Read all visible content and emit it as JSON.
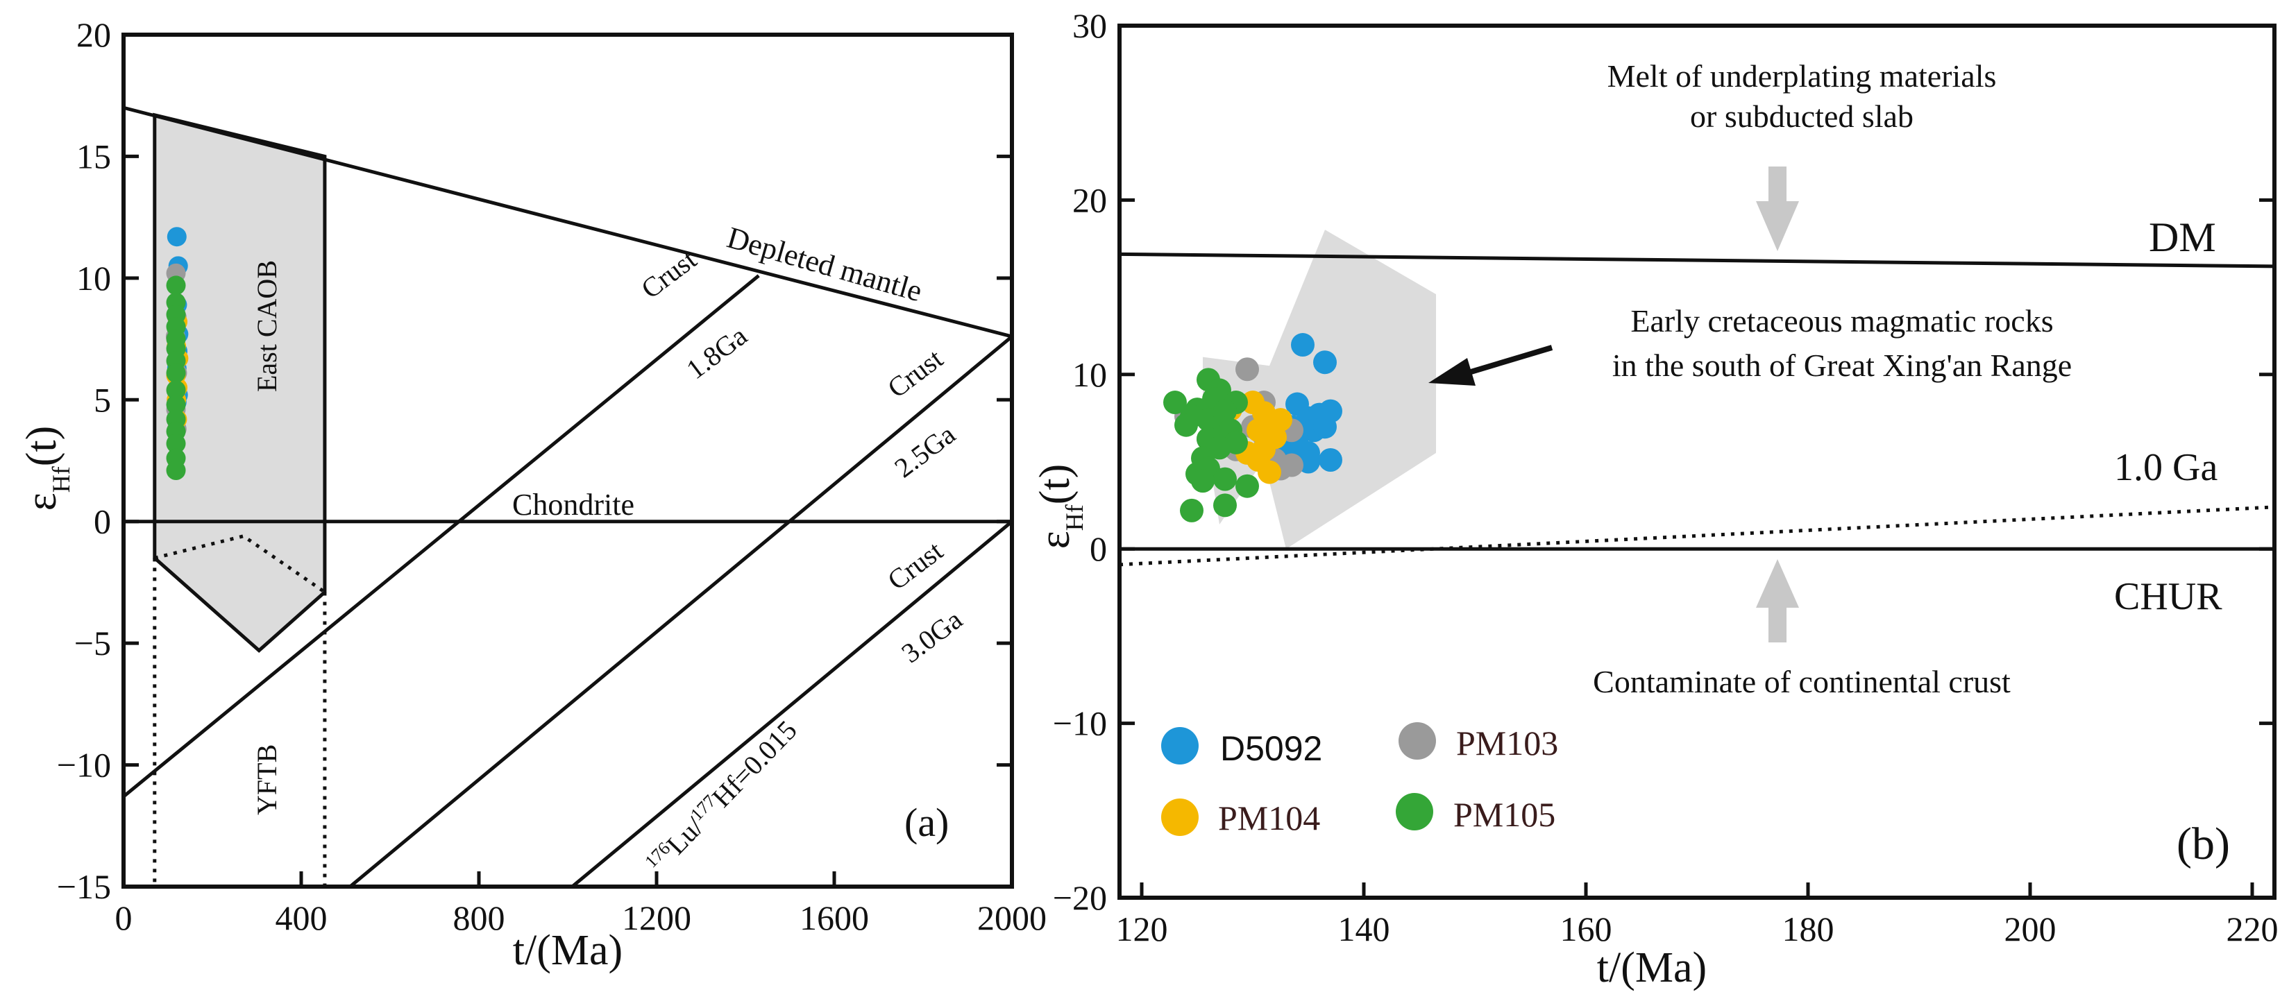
{
  "chart_data": [
    {
      "type": "scatter",
      "panel_label": "(a)",
      "xlabel": "t/(Ma)",
      "ylabel_main": "ε",
      "ylabel_sub": "Hf",
      "ylabel_suffix": "(t)",
      "xlim": [
        0,
        2000
      ],
      "ylim": [
        -15,
        20
      ],
      "x_ticks": [
        0,
        400,
        800,
        1200,
        1600,
        2000
      ],
      "y_ticks": [
        -15,
        -10,
        -5,
        0,
        5,
        10,
        15,
        20
      ],
      "x_tick_labels": [
        "0",
        "400",
        "800",
        "1200",
        "1600",
        "2000"
      ],
      "y_tick_labels": [
        "−15",
        "−10",
        "−5",
        "0",
        "5",
        "10",
        "15",
        "20"
      ],
      "grid": false,
      "lines": [
        {
          "label": "Depleted mantle",
          "points": [
            [
              0,
              17
            ],
            [
              2000,
              7.6
            ]
          ]
        },
        {
          "label": "Chondrite",
          "points": [
            [
              0,
              0
            ],
            [
              2000,
              0
            ]
          ]
        },
        {
          "label": "Crust 1.8Ga",
          "label_a": "Crust",
          "label_b": "1.8Ga",
          "points": [
            [
              0,
              -11.3
            ],
            [
              1430,
              10.1
            ]
          ]
        },
        {
          "label": "Crust 2.5Ga",
          "label_a": "Crust",
          "label_b": "2.5Ga",
          "points": [
            [
              510,
              -15
            ],
            [
              2000,
              7.6
            ]
          ]
        },
        {
          "label": "Crust 3.0Ga",
          "label_a": "Crust",
          "label_b": "3.0Ga",
          "points": [
            [
              1010,
              -15
            ],
            [
              2000,
              0
            ]
          ]
        }
      ],
      "lu_hf_label": {
        "pre1": "176",
        "mid1": "Lu/",
        "pre2": "177",
        "mid2": "Hf=0.015"
      },
      "regions": [
        {
          "label": "East CAOB",
          "fill": "#dcdcdc",
          "polygon": [
            [
              70,
              16.7
            ],
            [
              453,
              15
            ],
            [
              453,
              -2.9
            ],
            [
              305,
              -5.3
            ],
            [
              70,
              -1.5
            ]
          ]
        },
        {
          "label": "YFTB",
          "fill": "none"
        }
      ],
      "dotted_paths": [
        [
          [
            70,
            -1.5
          ],
          [
            70,
            -15
          ]
        ],
        [
          [
            453,
            -2.9
          ],
          [
            453,
            -15
          ]
        ],
        [
          [
            70,
            -1.5
          ],
          [
            270,
            -0.6
          ],
          [
            453,
            -2.9
          ]
        ]
      ],
      "series": [
        {
          "name": "D5092",
          "color": "#1e96d8",
          "points": [
            [
              120,
              11.7
            ],
            [
              123,
              10.5
            ],
            [
              121,
              8.9
            ],
            [
              124,
              7.7
            ],
            [
              122,
              7.0
            ],
            [
              120,
              6.3
            ],
            [
              123,
              5.2
            ],
            [
              120,
              4.9
            ]
          ]
        },
        {
          "name": "PM103",
          "color": "#9a9a9a",
          "points": [
            [
              118,
              10.2
            ],
            [
              120,
              8.4
            ],
            [
              117,
              7.6
            ],
            [
              121,
              6.1
            ],
            [
              118,
              4.6
            ],
            [
              120,
              3.8
            ]
          ]
        },
        {
          "name": "PM104",
          "color": "#f5b800",
          "points": [
            [
              122,
              8.2
            ],
            [
              119,
              7.2
            ],
            [
              124,
              6.7
            ],
            [
              118,
              6.0
            ],
            [
              122,
              5.5
            ],
            [
              119,
              5.0
            ],
            [
              121,
              4.2
            ]
          ]
        },
        {
          "name": "PM105",
          "color": "#34a637",
          "points": [
            [
              118,
              9.7
            ],
            [
              118,
              9.0
            ],
            [
              118,
              8.5
            ],
            [
              118,
              8.0
            ],
            [
              118,
              7.5
            ],
            [
              118,
              7.1
            ],
            [
              118,
              6.6
            ],
            [
              118,
              6.1
            ],
            [
              118,
              5.4
            ],
            [
              118,
              4.8
            ],
            [
              118,
              4.2
            ],
            [
              118,
              3.7
            ],
            [
              118,
              3.2
            ],
            [
              118,
              2.6
            ],
            [
              118,
              2.1
            ]
          ]
        }
      ]
    },
    {
      "type": "scatter",
      "panel_label": "(b)",
      "xlabel": "t/(Ma)",
      "ylabel_main": "ε",
      "ylabel_sub": "Hf",
      "ylabel_suffix": "(t)",
      "xlim": [
        118,
        222
      ],
      "ylim": [
        -20,
        30
      ],
      "x_ticks": [
        120,
        140,
        160,
        180,
        200,
        220
      ],
      "y_ticks": [
        -20,
        -10,
        0,
        10,
        20,
        30
      ],
      "x_tick_labels": [
        "120",
        "140",
        "160",
        "180",
        "200",
        "220"
      ],
      "y_tick_labels": [
        "−20",
        "−10",
        "0",
        "10",
        "20",
        "30"
      ],
      "grid": false,
      "lines": [
        {
          "label": "DM",
          "points": [
            [
              118,
              16.9
            ],
            [
              222,
              16.2
            ]
          ]
        },
        {
          "label": "CHUR",
          "points": [
            [
              118,
              0
            ],
            [
              222,
              0
            ]
          ]
        },
        {
          "label": "1.0 Ga",
          "style": "dotted",
          "points": [
            [
              118,
              -0.9
            ],
            [
              222,
              2.4
            ]
          ]
        }
      ],
      "regions": [
        {
          "label": "Early cretaceous magmatic rocks in the south of Great Xing'an Range",
          "fill": "#dcdcdc",
          "polygon": [
            [
              125.5,
              11
            ],
            [
              131.5,
              10.5
            ],
            [
              136.5,
              18.3
            ],
            [
              146.5,
              14.6
            ],
            [
              146.5,
              5.5
            ],
            [
              133,
              0
            ],
            [
              131,
              5.1
            ],
            [
              127,
              1.4
            ],
            [
              125.5,
              7.5
            ]
          ]
        }
      ],
      "annotations": {
        "melt_line1": "Melt of underplating materials",
        "melt_line2": "or subducted slab",
        "early_line1": "Early cretaceous magmatic rocks",
        "early_line2": "in the south of  Great Xing'an Range",
        "contaminate": "Contaminate of continental crust"
      },
      "arrow_color": "#c8c8c8",
      "legend": {
        "position": "bottom-left",
        "items": [
          "D5092",
          "PM103",
          "PM104",
          "PM105"
        ]
      },
      "series": [
        {
          "name": "D5092",
          "color": "#1e96d8",
          "points": [
            [
              134.5,
              11.7
            ],
            [
              136.5,
              10.7
            ],
            [
              134.0,
              8.3
            ],
            [
              135.0,
              7.5
            ],
            [
              136.0,
              7.7
            ],
            [
              137.0,
              7.9
            ],
            [
              133.5,
              7.0
            ],
            [
              135.5,
              6.8
            ],
            [
              136.5,
              7.0
            ],
            [
              134.0,
              6.0
            ],
            [
              135.0,
              5.5
            ],
            [
              133.5,
              5.0
            ],
            [
              135.0,
              5.0
            ],
            [
              137.0,
              5.1
            ],
            [
              132.5,
              6.5
            ],
            [
              133.0,
              5.8
            ]
          ]
        },
        {
          "name": "PM103",
          "color": "#9a9a9a",
          "points": [
            [
              129.5,
              10.3
            ],
            [
              124.0,
              7.6
            ],
            [
              131.0,
              8.4
            ],
            [
              133.5,
              6.8
            ],
            [
              130.0,
              7.0
            ],
            [
              126.0,
              6.3
            ],
            [
              128.5,
              5.7
            ],
            [
              132.0,
              5.1
            ],
            [
              133.5,
              4.8
            ],
            [
              132.5,
              4.6
            ],
            [
              127.0,
              6.0
            ],
            [
              131.0,
              6.5
            ]
          ]
        },
        {
          "name": "PM104",
          "color": "#f5b800",
          "points": [
            [
              126.5,
              8.3
            ],
            [
              128.0,
              8.0
            ],
            [
              130.0,
              8.4
            ],
            [
              131.0,
              7.8
            ],
            [
              132.5,
              7.4
            ],
            [
              131.5,
              7.0
            ],
            [
              130.5,
              6.8
            ],
            [
              132.0,
              6.4
            ],
            [
              131.0,
              5.7
            ],
            [
              130.5,
              5.1
            ],
            [
              131.5,
              4.4
            ],
            [
              129.5,
              5.5
            ],
            [
              127.0,
              7.3
            ],
            [
              128.0,
              6.7
            ],
            [
              126.0,
              7.7
            ]
          ]
        },
        {
          "name": "PM105",
          "color": "#34a637",
          "points": [
            [
              123.0,
              8.4
            ],
            [
              126.0,
              9.7
            ],
            [
              127.0,
              9.1
            ],
            [
              126.5,
              8.6
            ],
            [
              128.5,
              8.4
            ],
            [
              125.0,
              8.0
            ],
            [
              127.5,
              7.9
            ],
            [
              124.5,
              7.6
            ],
            [
              126.0,
              7.4
            ],
            [
              124.0,
              7.1
            ],
            [
              127.0,
              7.0
            ],
            [
              128.0,
              6.8
            ],
            [
              126.0,
              6.3
            ],
            [
              128.5,
              6.1
            ],
            [
              127.0,
              5.8
            ],
            [
              125.5,
              5.2
            ],
            [
              125.0,
              4.3
            ],
            [
              126.0,
              4.6
            ],
            [
              127.5,
              4.0
            ],
            [
              125.5,
              3.9
            ],
            [
              129.5,
              3.6
            ],
            [
              127.5,
              2.5
            ],
            [
              124.5,
              2.2
            ]
          ]
        }
      ]
    }
  ]
}
